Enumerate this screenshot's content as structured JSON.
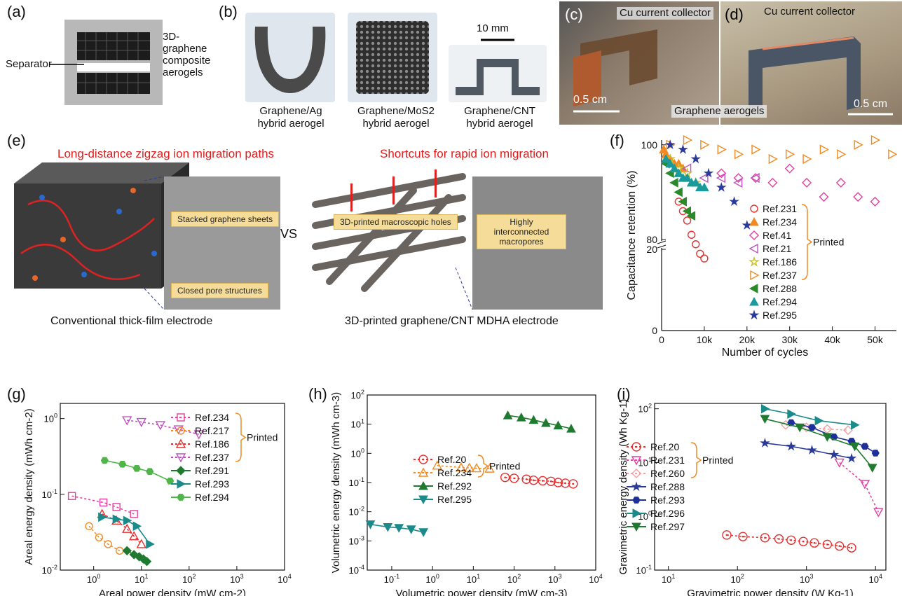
{
  "panel_labels": {
    "a": "(a)",
    "b": "(b)",
    "c": "(c)",
    "d": "(d)",
    "e": "(e)",
    "f": "(f)",
    "g": "(g)",
    "h": "(h)",
    "i": "(i)"
  },
  "panel_a": {
    "separator": "Separator",
    "aerogel_label": [
      "3D-",
      "graphene",
      "composite",
      "aerogels"
    ]
  },
  "panel_b": {
    "scale": "10 mm",
    "items": [
      [
        "Graphene/Ag",
        "hybrid aerogel"
      ],
      [
        "Graphene/MoS2",
        "hybrid aerogel"
      ],
      [
        "Graphene/CNT",
        "hybrid aerogel"
      ]
    ]
  },
  "panel_c": {
    "collector": "Cu current collector",
    "scale": "0.5 cm"
  },
  "panel_d": {
    "collector": "Cu current collector",
    "aerogel": "Graphene aerogels",
    "scale": "0.5 cm"
  },
  "panel_e": {
    "left_title": "Long-distance zigzag ion migration paths",
    "right_title": "Shortcuts for rapid ion migration",
    "left_box1": "Stacked graphene sheets",
    "left_box2": "Closed pore structures",
    "right_box1": "3D-printed macroscopic holes",
    "right_box2": "Highly interconnected macropores",
    "vs": "VS",
    "left_caption": "Conventional thick-film electrode",
    "right_caption": "3D-printed graphene/CNT MDHA electrode"
  },
  "printed_label": "Printed",
  "chart_data": [
    {
      "id": "f",
      "type": "scatter",
      "xlabel": "Number of cycles",
      "ylabel": "Capacitance retention (%)",
      "xticks": [
        "0",
        "10k",
        "20k",
        "30k",
        "40k",
        "50k"
      ],
      "yticks": [
        "0",
        "20",
        "80",
        "100"
      ],
      "series": [
        {
          "name": "Ref.231",
          "marker": "o",
          "color": "#e53030",
          "printed": true,
          "x": [
            4,
            5,
            6,
            7,
            8,
            9,
            10
          ],
          "y": [
            88,
            86,
            84,
            81,
            79,
            77,
            76
          ]
        },
        {
          "name": "Ref.234",
          "marker": "tri",
          "color": "#f08a24",
          "printed": true,
          "x": [
            0.5,
            1,
            2,
            3,
            4,
            5
          ],
          "y": [
            99,
            98,
            97,
            96,
            96,
            95
          ]
        },
        {
          "name": "Ref.41",
          "marker": "diamond",
          "color": "#e040a0",
          "printed": true,
          "x": [
            14,
            18,
            22,
            26,
            30,
            34,
            38,
            42,
            46,
            50
          ],
          "y": [
            94,
            93,
            93,
            92,
            95,
            92,
            89,
            92,
            89,
            88
          ]
        },
        {
          "name": "Ref.21",
          "marker": "tri-left",
          "color": "#c050c0",
          "printed": true,
          "x": [
            6,
            10,
            14,
            18,
            22
          ],
          "y": [
            95,
            93,
            93,
            92,
            93
          ]
        },
        {
          "name": "Ref.186",
          "marker": "star-o",
          "color": "#c8c030",
          "printed": true,
          "x": [
            2,
            4,
            6,
            8
          ],
          "y": [
            97,
            95,
            94,
            92
          ]
        },
        {
          "name": "Ref.237",
          "marker": "tri-right",
          "color": "#f08a24",
          "printed": true,
          "x": [
            2,
            6,
            10,
            14,
            18,
            22,
            26,
            30,
            34,
            38,
            42,
            46,
            50,
            54
          ],
          "y": [
            100,
            101,
            100,
            99,
            98,
            99,
            97,
            98,
            97,
            99,
            98,
            100,
            101,
            98
          ]
        },
        {
          "name": "Ref.288",
          "marker": "tri-left-f",
          "color": "#2a8a2a",
          "printed": false,
          "x": [
            1,
            2,
            3,
            4,
            5,
            6,
            7
          ],
          "y": [
            96,
            94,
            92,
            90,
            88,
            86,
            85
          ]
        },
        {
          "name": "Ref.294",
          "marker": "tri-f",
          "color": "#1a9a9a",
          "printed": false,
          "x": [
            1,
            2,
            3,
            4,
            5,
            6,
            7,
            8,
            9,
            10
          ],
          "y": [
            97,
            96,
            95,
            94,
            93,
            93,
            92,
            92,
            91,
            91
          ]
        },
        {
          "name": "Ref.295",
          "marker": "star",
          "color": "#2a3a9a",
          "printed": false,
          "x": [
            2,
            5,
            8,
            11,
            14,
            17,
            20
          ],
          "y": [
            100,
            99,
            97,
            94,
            91,
            88,
            83
          ]
        }
      ]
    },
    {
      "id": "g",
      "type": "line",
      "xlabel": "Areal power density (mW cm-2)",
      "ylabel": "Areal energy density (mWh cm-2)",
      "xticks": [
        "10^0",
        "10^1",
        "10^2",
        "10^3",
        "10^4"
      ],
      "yticks": [
        "10^-2",
        "10^-1",
        "10^0"
      ],
      "series": [
        {
          "name": "Ref.234",
          "marker": "square",
          "color": "#e040a0",
          "printed": true,
          "x": [
            0.35,
            1.6,
            3,
            7
          ],
          "y": [
            0.095,
            0.078,
            0.068,
            0.055
          ]
        },
        {
          "name": "Ref.217",
          "marker": "circle",
          "color": "#f08a24",
          "printed": true,
          "x": [
            0.8,
            1.3,
            2,
            3.5
          ],
          "y": [
            0.038,
            0.027,
            0.022,
            0.018
          ]
        },
        {
          "name": "Ref.186",
          "marker": "triangle",
          "color": "#e53030",
          "printed": true,
          "x": [
            1.5,
            3,
            5,
            7,
            10
          ],
          "y": [
            0.055,
            0.045,
            0.035,
            0.028,
            0.022
          ]
        },
        {
          "name": "Ref.237",
          "marker": "tri-down",
          "color": "#c050c0",
          "printed": true,
          "x": [
            5,
            10,
            25,
            60,
            160
          ],
          "y": [
            0.95,
            0.9,
            0.82,
            0.72,
            0.62
          ]
        },
        {
          "name": "Ref.291",
          "marker": "diamond-f",
          "color": "#1f7a2f",
          "printed": false,
          "x": [
            5,
            7,
            9,
            11,
            13
          ],
          "y": [
            0.018,
            0.016,
            0.015,
            0.014,
            0.013
          ]
        },
        {
          "name": "Ref.293",
          "marker": "tri-right-f",
          "color": "#1a8a8a",
          "printed": false,
          "x": [
            1.5,
            3,
            5,
            8,
            15
          ],
          "y": [
            0.05,
            0.047,
            0.045,
            0.038,
            0.022
          ]
        },
        {
          "name": "Ref.294",
          "marker": "hex",
          "color": "#4fb548",
          "printed": false,
          "x": [
            1.7,
            4,
            8,
            15,
            40
          ],
          "y": [
            0.28,
            0.25,
            0.22,
            0.2,
            0.15
          ]
        }
      ]
    },
    {
      "id": "h",
      "type": "line",
      "xlabel": "Volumetric power density (mW cm-3)",
      "ylabel": "Volumetric energy density (mWh cm-3)",
      "xticks": [
        "10^-1",
        "10^0",
        "10^1",
        "10^2",
        "10^3",
        "10^4"
      ],
      "yticks": [
        "10^-4",
        "10^-3",
        "10^-2",
        "10^-1",
        "10^0",
        "10^1",
        "10^2"
      ],
      "series": [
        {
          "name": "Ref.20",
          "marker": "circle-dot",
          "color": "#e53030",
          "printed": true,
          "x": [
            60,
            100,
            200,
            300,
            500,
            800,
            1200,
            1800,
            2800
          ],
          "y": [
            0.15,
            0.14,
            0.13,
            0.12,
            0.115,
            0.11,
            0.1,
            0.095,
            0.09
          ]
        },
        {
          "name": "Ref.234",
          "marker": "triangle",
          "color": "#f08a24",
          "printed": true,
          "x": [
            1.3,
            5,
            8,
            12,
            25
          ],
          "y": [
            0.38,
            0.33,
            0.32,
            0.31,
            0.3
          ]
        },
        {
          "name": "Ref.292",
          "marker": "tri-f",
          "color": "#1f7a2f",
          "printed": false,
          "x": [
            70,
            150,
            300,
            600,
            1200,
            2500
          ],
          "y": [
            20,
            17,
            14,
            11,
            9,
            7
          ]
        },
        {
          "name": "Ref.295",
          "marker": "tri-down-f",
          "color": "#1a8a8a",
          "printed": false,
          "x": [
            0.03,
            0.08,
            0.15,
            0.3,
            0.6
          ],
          "y": [
            0.0037,
            0.003,
            0.0028,
            0.0025,
            0.002
          ]
        }
      ]
    },
    {
      "id": "i",
      "type": "line",
      "xlabel": "Gravimetric power density (W Kg-1)",
      "ylabel": "Gravimetric energy density (Wh Kg-1)",
      "xticks": [
        "10^1",
        "10^2",
        "10^3",
        "10^4"
      ],
      "yticks": [
        "10^-1",
        "10^0",
        "10^1",
        "10^2"
      ],
      "series": [
        {
          "name": "Ref.20",
          "marker": "circle-dot",
          "color": "#e53030",
          "printed": true,
          "x": [
            70,
            120,
            250,
            400,
            600,
            900,
            1300,
            2000,
            3000,
            4500
          ],
          "y": [
            0.45,
            0.42,
            0.4,
            0.38,
            0.36,
            0.34,
            0.32,
            0.3,
            0.28,
            0.26
          ]
        },
        {
          "name": "Ref.231",
          "marker": "tri-down",
          "color": "#e040a0",
          "printed": true,
          "x": [
            3000,
            7000,
            11000
          ],
          "y": [
            10,
            4,
            1.2
          ]
        },
        {
          "name": "Ref.260",
          "marker": "diamond",
          "color": "#f0a0a0",
          "printed": true,
          "x": [
            500,
            1000,
            2000,
            4000
          ],
          "y": [
            50,
            45,
            42,
            40
          ]
        },
        {
          "name": "Ref.288",
          "marker": "star",
          "color": "#2a3a9a",
          "printed": false,
          "x": [
            250,
            600,
            1200,
            2500,
            4500
          ],
          "y": [
            23,
            20,
            17,
            14,
            12
          ]
        },
        {
          "name": "Ref.293",
          "marker": "hex",
          "color": "#1f2f9a",
          "printed": false,
          "x": [
            600,
            1200,
            2500,
            4500,
            7000,
            10000
          ],
          "y": [
            55,
            45,
            30,
            25,
            20,
            15
          ]
        },
        {
          "name": "Ref.296",
          "marker": "tri-right-f",
          "color": "#1a8a8a",
          "printed": false,
          "x": [
            250,
            600,
            1500,
            5000
          ],
          "y": [
            100,
            80,
            60,
            50
          ]
        },
        {
          "name": "Ref.297",
          "marker": "tri-down-f",
          "color": "#1f7a2f",
          "printed": false,
          "x": [
            250,
            800,
            2000,
            5000,
            9000
          ],
          "y": [
            65,
            45,
            30,
            20,
            8
          ]
        }
      ]
    }
  ]
}
